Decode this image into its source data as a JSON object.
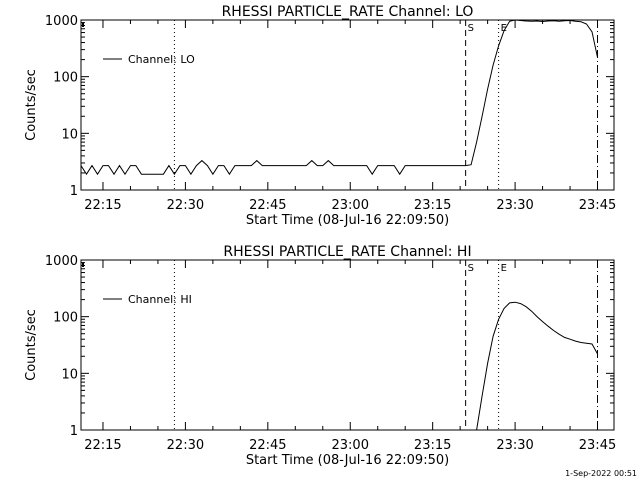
{
  "footer": {
    "timestamp": "1-Sep-2022 00:51"
  },
  "chart_data": [
    {
      "type": "line",
      "title": "RHESSI PARTICLE_RATE Channel: LO",
      "xlabel": "Start Time (08-Jul-16 22:09:50)",
      "ylabel": "Counts/sec",
      "y_scale": "log",
      "xlim": [
        "22:11",
        "23:48"
      ],
      "ylim": [
        1,
        1000
      ],
      "x_ticks": [
        "22:15",
        "22:30",
        "22:45",
        "23:00",
        "23:15",
        "23:30",
        "23:45"
      ],
      "y_ticks": [
        "1",
        "10",
        "100",
        "1000"
      ],
      "legend": {
        "label": "Channel: LO",
        "position": "top-left"
      },
      "markers": [
        {
          "time": "22:28",
          "style": "dotted",
          "label": ""
        },
        {
          "time": "23:21",
          "style": "dashed",
          "label": "S"
        },
        {
          "time": "23:27",
          "style": "dotted",
          "label": "E"
        },
        {
          "time": "23:45",
          "style": "dashdot",
          "label": ""
        }
      ],
      "series": [
        {
          "name": "Channel: LO",
          "x": [
            "22:11",
            "22:12",
            "22:13",
            "22:14",
            "22:15",
            "22:16",
            "22:17",
            "22:18",
            "22:19",
            "22:20",
            "22:21",
            "22:22",
            "22:23",
            "22:24",
            "22:25",
            "22:26",
            "22:27",
            "22:28",
            "22:29",
            "22:30",
            "22:31",
            "22:32",
            "22:33",
            "22:34",
            "22:35",
            "22:36",
            "22:37",
            "22:38",
            "22:39",
            "22:40",
            "22:41",
            "22:42",
            "22:43",
            "22:44",
            "22:45",
            "22:46",
            "22:47",
            "22:48",
            "22:49",
            "22:50",
            "22:51",
            "22:52",
            "22:53",
            "22:54",
            "22:55",
            "22:56",
            "22:57",
            "22:58",
            "22:59",
            "23:00",
            "23:01",
            "23:02",
            "23:03",
            "23:04",
            "23:05",
            "23:06",
            "23:07",
            "23:08",
            "23:09",
            "23:10",
            "23:11",
            "23:12",
            "23:13",
            "23:14",
            "23:15",
            "23:16",
            "23:17",
            "23:18",
            "23:19",
            "23:20",
            "23:21",
            "23:22",
            "23:23",
            "23:24",
            "23:25",
            "23:26",
            "23:27",
            "23:28",
            "23:29",
            "23:30",
            "23:31",
            "23:32",
            "23:33",
            "23:34",
            "23:35",
            "23:36",
            "23:37",
            "23:38",
            "23:39",
            "23:40",
            "23:41",
            "23:42",
            "23:43",
            "23:44",
            "23:45"
          ],
          "y": [
            2.7,
            1.9,
            2.7,
            1.9,
            2.7,
            2.7,
            1.9,
            2.7,
            1.9,
            2.7,
            2.7,
            1.9,
            1.9,
            1.9,
            1.9,
            1.9,
            2.7,
            1.9,
            2.7,
            2.7,
            1.9,
            2.7,
            3.3,
            2.7,
            1.9,
            2.7,
            2.7,
            1.9,
            2.7,
            2.7,
            2.7,
            2.7,
            3.3,
            2.7,
            2.7,
            2.7,
            2.7,
            2.7,
            2.7,
            2.7,
            2.7,
            2.7,
            3.3,
            2.7,
            2.7,
            3.3,
            2.7,
            2.7,
            2.7,
            2.7,
            2.7,
            2.7,
            2.7,
            1.9,
            2.7,
            2.7,
            2.7,
            2.7,
            1.9,
            2.7,
            2.7,
            2.7,
            2.7,
            2.7,
            2.7,
            2.7,
            2.7,
            2.7,
            2.7,
            2.7,
            2.7,
            2.8,
            7,
            20,
            60,
            160,
            350,
            650,
            950,
            1000,
            980,
            960,
            950,
            960,
            940,
            960,
            970,
            950,
            970,
            980,
            950,
            930,
            850,
            620,
            220
          ]
        }
      ]
    },
    {
      "type": "line",
      "title": "RHESSI PARTICLE_RATE Channel: HI",
      "xlabel": "Start Time (08-Jul-16 22:09:50)",
      "ylabel": "Counts/sec",
      "y_scale": "log",
      "xlim": [
        "22:11",
        "23:48"
      ],
      "ylim": [
        1,
        1000
      ],
      "x_ticks": [
        "22:15",
        "22:30",
        "22:45",
        "23:00",
        "23:15",
        "23:30",
        "23:45"
      ],
      "y_ticks": [
        "1",
        "10",
        "100",
        "1000"
      ],
      "legend": {
        "label": "Channel: HI",
        "position": "top-left"
      },
      "markers": [
        {
          "time": "22:28",
          "style": "dotted",
          "label": ""
        },
        {
          "time": "23:21",
          "style": "dashed",
          "label": "S"
        },
        {
          "time": "23:27",
          "style": "dotted",
          "label": "E"
        },
        {
          "time": "23:45",
          "style": "dashdot",
          "label": ""
        }
      ],
      "series": [
        {
          "name": "Channel: HI",
          "x": [
            "23:23",
            "23:24",
            "23:25",
            "23:26",
            "23:27",
            "23:28",
            "23:29",
            "23:30",
            "23:31",
            "23:32",
            "23:33",
            "23:34",
            "23:35",
            "23:36",
            "23:37",
            "23:38",
            "23:39",
            "23:40",
            "23:41",
            "23:42",
            "23:43",
            "23:44",
            "23:45"
          ],
          "y": [
            1,
            4,
            15,
            45,
            90,
            140,
            175,
            180,
            170,
            150,
            125,
            100,
            82,
            68,
            57,
            49,
            43,
            40,
            37,
            35,
            34,
            33,
            22
          ]
        }
      ]
    }
  ]
}
